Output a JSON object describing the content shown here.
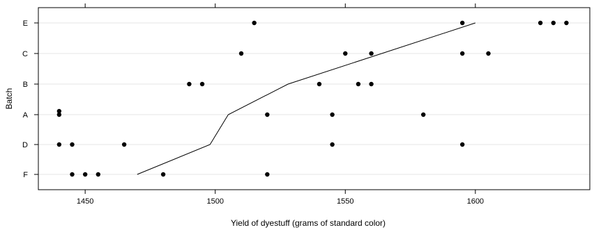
{
  "chart_data": {
    "type": "scatter",
    "title": "",
    "xlabel": "Yield of dyestuff (grams of standard color)",
    "ylabel": "Batch",
    "xlim": [
      1432,
      1644
    ],
    "x_ticks": [
      1450,
      1500,
      1550,
      1600
    ],
    "x_tick_labels": [
      "1450",
      "1500",
      "1550",
      "1600"
    ],
    "categories": [
      "F",
      "D",
      "A",
      "B",
      "C",
      "E"
    ],
    "grid": "horizontal-lines",
    "colors": {
      "point": "#000000",
      "line": "#000000",
      "grid": "#e6e6e6",
      "frame": "#000000"
    },
    "points": [
      {
        "batch": "E",
        "x": 1515
      },
      {
        "batch": "E",
        "x": 1595
      },
      {
        "batch": "E",
        "x": 1625
      },
      {
        "batch": "E",
        "x": 1630
      },
      {
        "batch": "E",
        "x": 1635
      },
      {
        "batch": "C",
        "x": 1510
      },
      {
        "batch": "C",
        "x": 1550
      },
      {
        "batch": "C",
        "x": 1560
      },
      {
        "batch": "C",
        "x": 1595
      },
      {
        "batch": "C",
        "x": 1605
      },
      {
        "batch": "B",
        "x": 1490
      },
      {
        "batch": "B",
        "x": 1495
      },
      {
        "batch": "B",
        "x": 1540
      },
      {
        "batch": "B",
        "x": 1555
      },
      {
        "batch": "B",
        "x": 1560
      },
      {
        "batch": "A",
        "x": 1440
      },
      {
        "batch": "A",
        "x": 1440
      },
      {
        "batch": "A",
        "x": 1520
      },
      {
        "batch": "A",
        "x": 1545
      },
      {
        "batch": "A",
        "x": 1580
      },
      {
        "batch": "D",
        "x": 1440
      },
      {
        "batch": "D",
        "x": 1445
      },
      {
        "batch": "D",
        "x": 1465
      },
      {
        "batch": "D",
        "x": 1545
      },
      {
        "batch": "D",
        "x": 1595
      },
      {
        "batch": "F",
        "x": 1445
      },
      {
        "batch": "F",
        "x": 1450
      },
      {
        "batch": "F",
        "x": 1455
      },
      {
        "batch": "F",
        "x": 1480
      },
      {
        "batch": "F",
        "x": 1520
      }
    ],
    "mean_line": [
      {
        "batch": "F",
        "x": 1470
      },
      {
        "batch": "D",
        "x": 1498
      },
      {
        "batch": "A",
        "x": 1505
      },
      {
        "batch": "B",
        "x": 1528
      },
      {
        "batch": "C",
        "x": 1564
      },
      {
        "batch": "E",
        "x": 1600
      }
    ]
  }
}
